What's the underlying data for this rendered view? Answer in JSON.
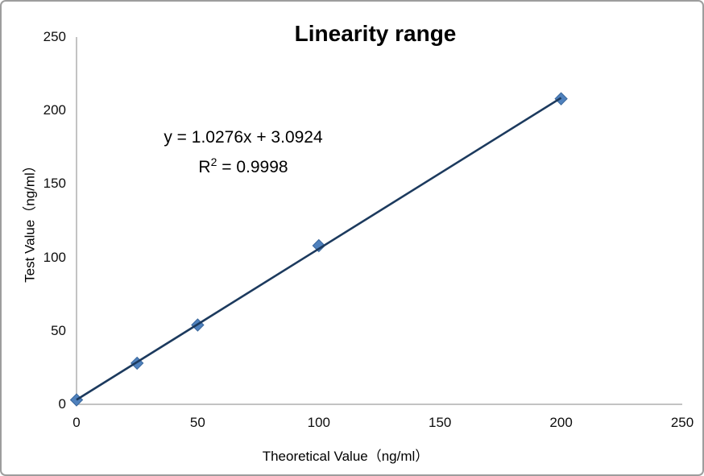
{
  "chart_data": {
    "type": "scatter",
    "title": "Linearity range",
    "xlabel": "Theoretical Value（ng/ml）",
    "ylabel": "Test Value（ng/ml）",
    "x": [
      0,
      25,
      50,
      100,
      200
    ],
    "y": [
      3,
      28,
      54,
      108,
      208
    ],
    "xlim": [
      0,
      250
    ],
    "ylim": [
      0,
      250
    ],
    "x_ticks": [
      0,
      50,
      100,
      150,
      200,
      250
    ],
    "y_ticks": [
      0,
      50,
      100,
      150,
      200,
      250
    ],
    "grid": false,
    "legend": "none",
    "trendline": {
      "slope": 1.0276,
      "intercept": 3.0924,
      "x_start": 0,
      "x_end": 200
    },
    "annotations": [
      "y = 1.0276x + 3.0924",
      "R² = 0.9998"
    ],
    "annotation_parts": {
      "line1": "y = 1.0276x + 3.0924",
      "r_base": "R",
      "r_exponent": "2",
      "r_rest": " = 0.9998"
    },
    "colors": {
      "marker_fill": "#4f81bd",
      "marker_stroke": "#3a679c",
      "trendline": "#1c3a5e",
      "axis_line": "#c3c3c3",
      "text": "#000000"
    }
  }
}
